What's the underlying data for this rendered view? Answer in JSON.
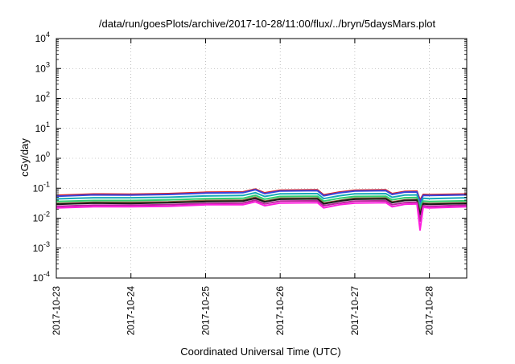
{
  "chart_data": {
    "type": "line",
    "title": "/data/run/goesPlots/archive/2017-10-28/11:00/flux/../bryn/5daysMars.plot",
    "xlabel": "Coordinated Universal Time (UTC)",
    "ylabel": "cGy/day",
    "yscale": "log",
    "ylim": [
      0.0001,
      10000
    ],
    "y_ticks": [
      {
        "exp": "-4",
        "value": 0.0001
      },
      {
        "exp": "-3",
        "value": 0.001
      },
      {
        "exp": "-2",
        "value": 0.01
      },
      {
        "exp": "-1",
        "value": 0.1
      },
      {
        "exp": "0",
        "value": 1
      },
      {
        "exp": "1",
        "value": 10
      },
      {
        "exp": "2",
        "value": 100
      },
      {
        "exp": "3",
        "value": 1000
      },
      {
        "exp": "4",
        "value": 10000
      }
    ],
    "y_tick_base": "10",
    "xlim": [
      "2017-10-23",
      "2017-10-28 12:00"
    ],
    "x_ticks": [
      "2017-10-23",
      "2017-10-24",
      "2017-10-25",
      "2017-10-26",
      "2017-10-27",
      "2017-10-28"
    ],
    "grid": true,
    "legend": "none",
    "x": [
      "2017-10-23 00:00",
      "2017-10-23 12:00",
      "2017-10-24 00:00",
      "2017-10-24 12:00",
      "2017-10-25 00:00",
      "2017-10-25 12:00",
      "2017-10-25 16:00",
      "2017-10-25 19:00",
      "2017-10-26 00:00",
      "2017-10-26 12:00",
      "2017-10-26 14:00",
      "2017-10-26 19:00",
      "2017-10-27 00:00",
      "2017-10-27 10:00",
      "2017-10-27 12:00",
      "2017-10-27 16:00",
      "2017-10-27 20:00",
      "2017-10-27 21:00",
      "2017-10-27 22:00",
      "2017-10-28 00:00",
      "2017-10-28 12:00"
    ],
    "series": [
      {
        "color": "#e0201e",
        "values": [
          0.058,
          0.064,
          0.063,
          0.066,
          0.073,
          0.075,
          0.094,
          0.07,
          0.086,
          0.088,
          0.06,
          0.074,
          0.086,
          0.088,
          0.066,
          0.078,
          0.08,
          0.04,
          0.062,
          0.061,
          0.064
        ]
      },
      {
        "color": "#3a46dc",
        "values": [
          0.054,
          0.06,
          0.059,
          0.062,
          0.069,
          0.071,
          0.089,
          0.066,
          0.081,
          0.083,
          0.056,
          0.07,
          0.081,
          0.083,
          0.062,
          0.074,
          0.075,
          0.034,
          0.058,
          0.057,
          0.06
        ]
      },
      {
        "color": "#17a9b8",
        "values": [
          0.044,
          0.048,
          0.048,
          0.05,
          0.055,
          0.057,
          0.071,
          0.053,
          0.065,
          0.066,
          0.045,
          0.056,
          0.065,
          0.066,
          0.05,
          0.059,
          0.06,
          0.026,
          0.046,
          0.045,
          0.048
        ]
      },
      {
        "color": "#2fce6e",
        "values": [
          0.036,
          0.039,
          0.039,
          0.041,
          0.045,
          0.046,
          0.058,
          0.043,
          0.053,
          0.054,
          0.037,
          0.046,
          0.053,
          0.054,
          0.041,
          0.048,
          0.049,
          0.02,
          0.037,
          0.036,
          0.038
        ]
      },
      {
        "color": "#8a6a40",
        "values": [
          0.031,
          0.034,
          0.034,
          0.035,
          0.039,
          0.04,
          0.05,
          0.037,
          0.046,
          0.047,
          0.032,
          0.039,
          0.046,
          0.047,
          0.035,
          0.041,
          0.042,
          0.016,
          0.032,
          0.031,
          0.033
        ]
      },
      {
        "color": "#1a1a1a",
        "values": [
          0.029,
          0.032,
          0.031,
          0.033,
          0.036,
          0.037,
          0.046,
          0.035,
          0.043,
          0.044,
          0.03,
          0.037,
          0.043,
          0.044,
          0.033,
          0.039,
          0.04,
          0.013,
          0.03,
          0.029,
          0.031
        ]
      },
      {
        "color": "#b8239a",
        "values": [
          0.025,
          0.027,
          0.027,
          0.028,
          0.031,
          0.032,
          0.04,
          0.03,
          0.037,
          0.038,
          0.026,
          0.032,
          0.037,
          0.038,
          0.028,
          0.033,
          0.034,
          0.008,
          0.026,
          0.025,
          0.027
        ]
      },
      {
        "color": "#ff1dde",
        "values": [
          0.022,
          0.024,
          0.024,
          0.025,
          0.028,
          0.028,
          0.035,
          0.026,
          0.032,
          0.033,
          0.022,
          0.028,
          0.032,
          0.033,
          0.024,
          0.029,
          0.03,
          0.004,
          0.023,
          0.022,
          0.024
        ]
      }
    ]
  }
}
